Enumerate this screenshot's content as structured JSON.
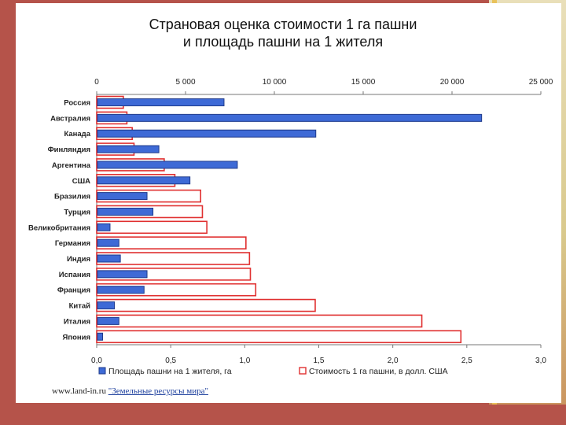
{
  "title": {
    "line1": "Страновая оценка стоимости 1 га пашни",
    "line2": "и площадь пашни на 1 жителя"
  },
  "source": {
    "site": "www.land-in.ru",
    "link_text": "\"Земельные ресурсы мира\""
  },
  "colors": {
    "area_fill": "#3e6ad6",
    "area_stroke": "#1f3a8a",
    "cost_stroke": "#e03030",
    "axis": "#777777",
    "background_slide": "#b5534a"
  },
  "chart_data": {
    "type": "bar",
    "orientation": "horizontal",
    "categories": [
      "Россия",
      "Австралия",
      "Канада",
      "Финляндия",
      "Аргентина",
      "США",
      "Бразилия",
      "Турция",
      "Великобритания",
      "Германия",
      "Индия",
      "Испания",
      "Франция",
      "Китай",
      "Италия",
      "Япония"
    ],
    "series": [
      {
        "name": "Площадь пашни на 1 жителя, га",
        "axis": "bottom",
        "style": "filled",
        "values": [
          0.86,
          2.6,
          1.48,
          0.42,
          0.95,
          0.63,
          0.34,
          0.38,
          0.09,
          0.15,
          0.16,
          0.34,
          0.32,
          0.12,
          0.15,
          0.04
        ]
      },
      {
        "name": "Стоимость 1 га пашни, в долл. США",
        "axis": "top",
        "style": "outline",
        "values": [
          1500,
          1700,
          2000,
          2100,
          3800,
          4400,
          5850,
          5950,
          6200,
          8400,
          8600,
          8650,
          8950,
          12300,
          18300,
          20500
        ]
      }
    ],
    "x_top": {
      "range": [
        0,
        25000
      ],
      "ticks": [
        0,
        5000,
        10000,
        15000,
        20000,
        25000
      ],
      "tick_labels": [
        "0",
        "5 000",
        "10 000",
        "15 000",
        "20 000",
        "25 000"
      ]
    },
    "x_bottom": {
      "range": [
        0,
        3.0
      ],
      "ticks": [
        0,
        0.5,
        1.0,
        1.5,
        2.0,
        2.5,
        3.0
      ],
      "tick_labels": [
        "0,0",
        "0,5",
        "1,0",
        "1,5",
        "2,0",
        "2,5",
        "3,0"
      ]
    },
    "grid": false,
    "legend_position": "bottom",
    "legend": [
      "Площадь пашни  на 1 жителя, га",
      "Стоимость 1 га пашни, в долл. США"
    ]
  }
}
